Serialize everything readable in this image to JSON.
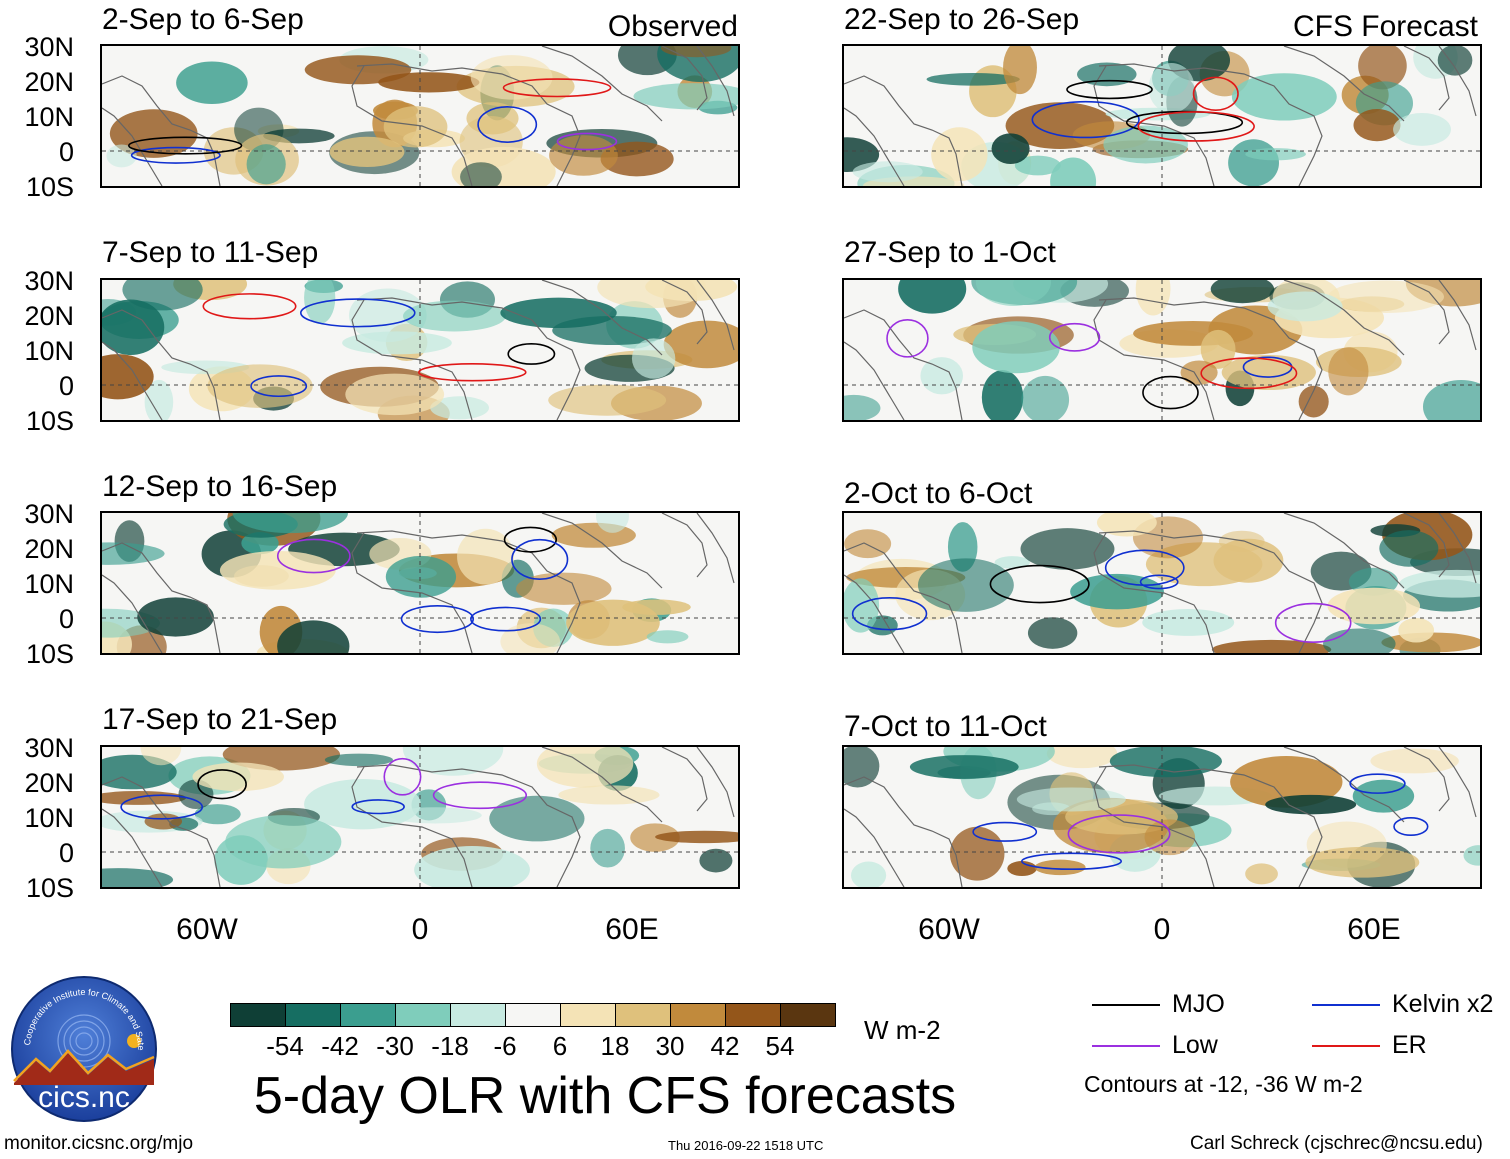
{
  "header": {
    "observed_label": "Observed",
    "forecast_label": "CFS Forecast"
  },
  "observed_panels": [
    {
      "title": "2-Sep to 6-Sep"
    },
    {
      "title": "7-Sep to 11-Sep"
    },
    {
      "title": "12-Sep to 16-Sep"
    },
    {
      "title": "17-Sep to 21-Sep"
    }
  ],
  "forecast_panels": [
    {
      "title": "22-Sep to 26-Sep"
    },
    {
      "title": "27-Sep to 1-Oct"
    },
    {
      "title": "2-Oct to 6-Oct"
    },
    {
      "title": "7-Oct to 11-Oct"
    }
  ],
  "axes": {
    "lat_labels": [
      "30N",
      "20N",
      "10N",
      "0",
      "10S"
    ],
    "lon_labels": [
      "60W",
      "0",
      "60E"
    ]
  },
  "colorbar": {
    "colors": [
      "#0f3f36",
      "#166e62",
      "#3b9e8f",
      "#7fcdbb",
      "#c7eae1",
      "#f6f6f4",
      "#f4e3b6",
      "#dfc17c",
      "#c18a3c",
      "#94561a",
      "#5a3610"
    ],
    "tick_labels": [
      "-54",
      "-42",
      "-30",
      "-18",
      "-6",
      "6",
      "18",
      "30",
      "42",
      "54"
    ],
    "units": "W m-2"
  },
  "title": "5-day OLR with CFS forecasts",
  "legend": {
    "items": [
      {
        "label": "MJO",
        "color": "#000000"
      },
      {
        "label": "Kelvin x2",
        "color": "#1030d0"
      },
      {
        "label": "Low",
        "color": "#9b30e0"
      },
      {
        "label": "ER",
        "color": "#e01818"
      }
    ],
    "note": "Contours at -12, -36 W m-2"
  },
  "logo": {
    "text": "cics.nc",
    "ring_text": "Cooperative Institute for Climate and Satellites"
  },
  "footer": {
    "url": "monitor.cicsnc.org/mjo",
    "timestamp": "Thu 2016-09-22 1518 UTC",
    "credit": "Carl Schreck (cjschrec@ncsu.edu)"
  }
}
